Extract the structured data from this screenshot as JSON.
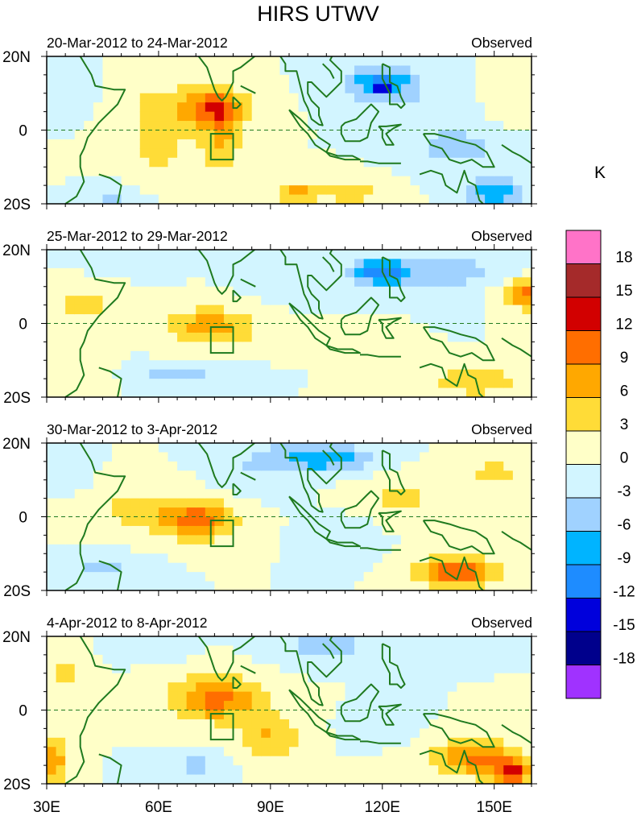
{
  "chart_data": {
    "type": "heatmap",
    "title": "HIRS UTWV",
    "colorbar": {
      "unit": "K",
      "tick_labels": [
        "18",
        "15",
        "12",
        "9",
        "6",
        "3",
        "0",
        "-3",
        "-6",
        "-9",
        "-12",
        "-15",
        "-18"
      ],
      "levels": [
        21,
        18,
        15,
        12,
        9,
        6,
        3,
        0,
        -3,
        -6,
        -9,
        -12,
        -15,
        -18,
        -21
      ],
      "colors": [
        "#ff73c8",
        "#a52a2a",
        "#d20000",
        "#ff6e00",
        "#ffa800",
        "#ffdc37",
        "#ffffc8",
        "#d2f5ff",
        "#a0d2ff",
        "#00b4ff",
        "#1e8cff",
        "#0000dc",
        "#00008c",
        "#a032ff"
      ]
    },
    "x_axis": {
      "range": [
        30,
        160
      ],
      "ticks": [
        30,
        60,
        90,
        120,
        150
      ],
      "tick_labels": [
        "30E",
        "60E",
        "90E",
        "120E",
        "150E"
      ]
    },
    "y_axis": {
      "range": [
        -20,
        20
      ],
      "ticks": [
        20,
        0,
        -20
      ],
      "tick_labels": [
        "20N",
        "0",
        "20S"
      ]
    },
    "box_region": {
      "lon": [
        74,
        80
      ],
      "lat": [
        -8,
        -1
      ]
    },
    "panels": [
      {
        "left_label": "20-Mar-2012 to 24-Mar-2012",
        "right_label": "Observed",
        "blobs": [
          [
            75,
            6,
            9,
            5,
            11
          ],
          [
            77,
            -3,
            5,
            9,
            6
          ],
          [
            97,
            -17,
            6,
            3,
            7
          ],
          [
            60,
            5,
            10,
            9,
            4
          ],
          [
            60,
            -7,
            12,
            6,
            3
          ],
          [
            120,
            13,
            10,
            5,
            -9
          ],
          [
            120,
            12,
            3,
            2,
            -7
          ],
          [
            150,
            -17,
            8,
            4,
            -9
          ],
          [
            140,
            -5,
            12,
            5,
            -5
          ],
          [
            112,
            -17,
            9,
            4,
            4
          ],
          [
            47,
            -18,
            6,
            3,
            -4
          ],
          [
            132,
            5,
            10,
            6,
            -2
          ],
          [
            36,
            10,
            6,
            6,
            -2
          ],
          [
            155,
            8,
            6,
            6,
            2
          ]
        ]
      },
      {
        "left_label": "25-Mar-2012 to 29-Mar-2012",
        "right_label": "Observed",
        "blobs": [
          [
            74,
            -1,
            12,
            5,
            8
          ],
          [
            40,
            5,
            8,
            5,
            5
          ],
          [
            120,
            14,
            8,
            4,
            -11
          ],
          [
            160,
            8,
            8,
            4,
            10
          ],
          [
            65,
            -14,
            12,
            3,
            -4
          ],
          [
            95,
            14,
            10,
            6,
            -3
          ],
          [
            145,
            -16,
            15,
            4,
            5
          ],
          [
            53,
            17,
            10,
            3,
            -3
          ],
          [
            140,
            14,
            14,
            6,
            -4
          ],
          [
            115,
            -5,
            8,
            4,
            2
          ],
          [
            40,
            -14,
            8,
            4,
            2
          ]
        ]
      },
      {
        "left_label": "30-Mar-2012 to 3-Apr-2012",
        "right_label": "Observed",
        "blobs": [
          [
            71,
            -1,
            10,
            5,
            10
          ],
          [
            55,
            2,
            14,
            7,
            4
          ],
          [
            105,
            16,
            12,
            4,
            -8
          ],
          [
            87,
            14,
            12,
            7,
            -3
          ],
          [
            140,
            -15,
            10,
            4,
            12
          ],
          [
            125,
            5,
            12,
            6,
            4
          ],
          [
            150,
            12,
            8,
            5,
            4
          ],
          [
            45,
            -14,
            10,
            4,
            -4
          ],
          [
            35,
            12,
            6,
            5,
            -3
          ],
          [
            110,
            -5,
            8,
            5,
            -3
          ],
          [
            150,
            -3,
            8,
            4,
            3
          ]
        ]
      },
      {
        "left_label": "4-Apr-2012 to 8-Apr-2012",
        "right_label": "Observed",
        "blobs": [
          [
            75,
            3,
            12,
            6,
            10
          ],
          [
            90,
            -7,
            8,
            7,
            6
          ],
          [
            145,
            -13,
            12,
            5,
            10
          ],
          [
            155,
            -17,
            5,
            3,
            12
          ],
          [
            32,
            -14,
            4,
            6,
            8
          ],
          [
            35,
            10,
            5,
            6,
            4
          ],
          [
            105,
            17,
            12,
            4,
            -5
          ],
          [
            58,
            17,
            8,
            3,
            -3
          ],
          [
            70,
            -15,
            8,
            3,
            -4
          ],
          [
            120,
            -5,
            8,
            4,
            -2
          ]
        ]
      }
    ]
  }
}
